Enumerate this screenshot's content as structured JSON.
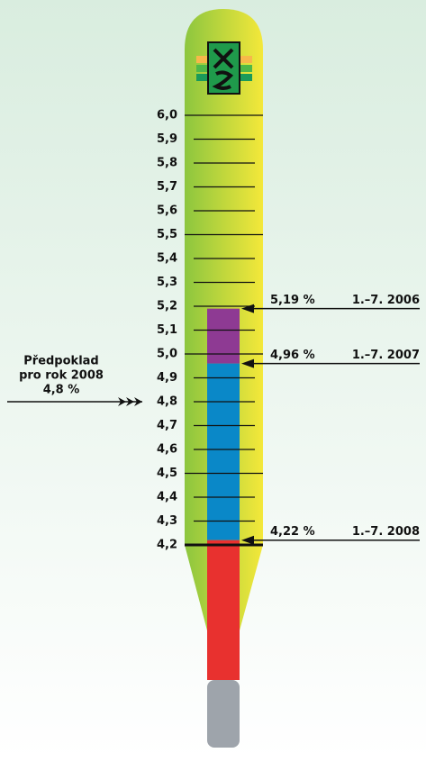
{
  "chart_data": {
    "type": "thermometer",
    "ylim": [
      4.2,
      6.0
    ],
    "yticks": [
      {
        "value": 4.2,
        "label": "4,2"
      },
      {
        "value": 4.3,
        "label": "4,3"
      },
      {
        "value": 4.4,
        "label": "4,4"
      },
      {
        "value": 4.5,
        "label": "4,5"
      },
      {
        "value": 4.6,
        "label": "4,6"
      },
      {
        "value": 4.7,
        "label": "4,7"
      },
      {
        "value": 4.8,
        "label": "4,8"
      },
      {
        "value": 4.9,
        "label": "4,9"
      },
      {
        "value": 5.0,
        "label": "5,0"
      },
      {
        "value": 5.1,
        "label": "5,1"
      },
      {
        "value": 5.2,
        "label": "5,2"
      },
      {
        "value": 5.3,
        "label": "5,3"
      },
      {
        "value": 5.4,
        "label": "5,4"
      },
      {
        "value": 5.5,
        "label": "5,5"
      },
      {
        "value": 5.6,
        "label": "5,6"
      },
      {
        "value": 5.7,
        "label": "5,7"
      },
      {
        "value": 5.8,
        "label": "5,8"
      },
      {
        "value": 5.9,
        "label": "5,9"
      },
      {
        "value": 6.0,
        "label": "6,0"
      }
    ],
    "markers": [
      {
        "value": 5.19,
        "value_label": "5,19 %",
        "period": "1.–7. 2006",
        "color": "#8e3a93"
      },
      {
        "value": 4.96,
        "value_label": "4,96 %",
        "period": "1.–7. 2007",
        "color": "#0a88c8"
      },
      {
        "value": 4.22,
        "value_label": "4,22 %",
        "period": "1.–7. 2008",
        "color": "#e8312f"
      }
    ],
    "forecast": {
      "label_lines": [
        "Předpoklad",
        "pro rok 2008"
      ],
      "value": 4.8,
      "value_label": "4,8 %"
    }
  }
}
